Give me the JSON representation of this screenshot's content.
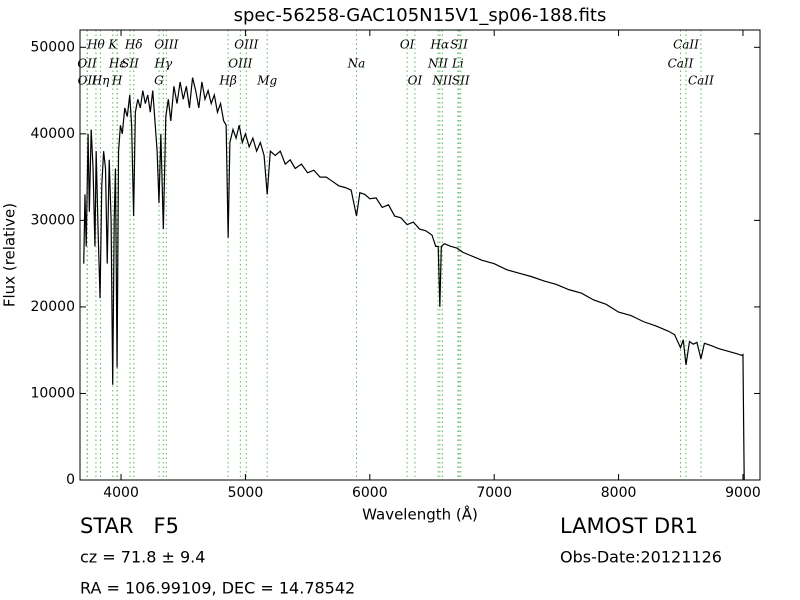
{
  "chart_data": {
    "type": "line",
    "title": "spec-56258-GAC105N15V1_sp06-188.fits",
    "x_label": "Wavelength (Å)",
    "y_label": "Flux (relative)",
    "xlim": [
      3670,
      9137
    ],
    "ylim": [
      0,
      52000
    ],
    "xticks": [
      4000,
      5000,
      6000,
      7000,
      8000,
      9000
    ],
    "yticks": [
      0,
      10000,
      20000,
      30000,
      40000,
      50000
    ],
    "grid": false,
    "line_color": "#5cb85c",
    "series": [
      {
        "name": "Flux",
        "color": "#000000",
        "x": [
          3700,
          3710,
          3720,
          3735,
          3745,
          3760,
          3775,
          3790,
          3800,
          3815,
          3831,
          3845,
          3860,
          3875,
          3889,
          3905,
          3920,
          3933,
          3945,
          3955,
          3968,
          3980,
          3995,
          4010,
          4030,
          4050,
          4070,
          4085,
          4101,
          4115,
          4135,
          4155,
          4175,
          4195,
          4215,
          4235,
          4255,
          4275,
          4290,
          4305,
          4320,
          4340,
          4360,
          4380,
          4400,
          4425,
          4450,
          4475,
          4500,
          4525,
          4550,
          4575,
          4600,
          4625,
          4650,
          4675,
          4700,
          4725,
          4750,
          4775,
          4800,
          4825,
          4845,
          4861,
          4875,
          4900,
          4925,
          4950,
          4975,
          5000,
          5030,
          5060,
          5090,
          5120,
          5150,
          5175,
          5200,
          5240,
          5280,
          5320,
          5360,
          5400,
          5450,
          5500,
          5550,
          5600,
          5650,
          5700,
          5750,
          5800,
          5850,
          5893,
          5920,
          5960,
          6000,
          6050,
          6100,
          6150,
          6200,
          6250,
          6300,
          6350,
          6400,
          6450,
          6500,
          6530,
          6550,
          6563,
          6575,
          6600,
          6650,
          6700,
          6750,
          6800,
          6850,
          6900,
          6950,
          7000,
          7100,
          7200,
          7300,
          7400,
          7500,
          7600,
          7700,
          7800,
          7900,
          8000,
          8100,
          8200,
          8300,
          8400,
          8450,
          8498,
          8520,
          8542,
          8570,
          8600,
          8630,
          8662,
          8690,
          8750,
          8800,
          8850,
          8900,
          8950,
          8990,
          9000,
          9005,
          9010
        ],
        "values": [
          25000,
          33000,
          27000,
          40000,
          31000,
          40500,
          36000,
          27000,
          38000,
          29000,
          21000,
          34000,
          38000,
          36000,
          25000,
          37000,
          30000,
          11000,
          30000,
          36000,
          13000,
          38000,
          41000,
          40000,
          43000,
          42000,
          44500,
          41000,
          30500,
          42500,
          44000,
          43000,
          45000,
          43500,
          44500,
          42500,
          45000,
          41000,
          38000,
          32000,
          40000,
          29000,
          42000,
          44000,
          41500,
          45500,
          43500,
          46000,
          44000,
          45500,
          43000,
          46500,
          45000,
          43000,
          46000,
          44000,
          45000,
          43500,
          44500,
          42500,
          43500,
          41500,
          41000,
          28000,
          39000,
          40500,
          39500,
          41000,
          39000,
          40000,
          38500,
          39500,
          38000,
          39000,
          37500,
          33000,
          38000,
          37500,
          38000,
          36500,
          37000,
          36000,
          36500,
          35500,
          35800,
          35000,
          35000,
          34500,
          34000,
          33800,
          33500,
          30500,
          33200,
          33000,
          32500,
          32600,
          31500,
          31800,
          30500,
          30300,
          29500,
          29800,
          29000,
          28800,
          28300,
          27000,
          27000,
          20000,
          27000,
          27300,
          27000,
          26800,
          26300,
          26000,
          25700,
          25400,
          25200,
          25000,
          24300,
          23900,
          23500,
          23000,
          22600,
          22000,
          21600,
          20800,
          20300,
          19400,
          19000,
          18300,
          17800,
          17200,
          16800,
          15300,
          16200,
          13300,
          16000,
          15700,
          15900,
          14000,
          15800,
          15500,
          15200,
          15000,
          14800,
          14600,
          14400,
          14500,
          7000,
          0
        ]
      }
    ],
    "spectral_lines": [
      {
        "label": "OII",
        "x": 3727
      },
      {
        "label": "OII",
        "x": 3729
      },
      {
        "label": "Hθ",
        "x": 3798
      },
      {
        "label": "Hη",
        "x": 3835
      },
      {
        "label": "K",
        "x": 3934
      },
      {
        "label": "H",
        "x": 3968
      },
      {
        "label": "Hε",
        "x": 3970
      },
      {
        "label": "SII",
        "x": 4072
      },
      {
        "label": "Hδ",
        "x": 4102
      },
      {
        "label": "G",
        "x": 4305
      },
      {
        "label": "Hγ",
        "x": 4340
      },
      {
        "label": "OIII",
        "x": 4364
      },
      {
        "label": "Hβ",
        "x": 4861
      },
      {
        "label": "OIII",
        "x": 4959
      },
      {
        "label": "OIII",
        "x": 5007
      },
      {
        "label": "Mg",
        "x": 5175
      },
      {
        "label": "Na",
        "x": 5893
      },
      {
        "label": "OI",
        "x": 6300
      },
      {
        "label": "OI",
        "x": 6363
      },
      {
        "label": "NII",
        "x": 6548
      },
      {
        "label": "Hα",
        "x": 6563
      },
      {
        "label": "NII",
        "x": 6583
      },
      {
        "label": "Li",
        "x": 6708
      },
      {
        "label": "SII",
        "x": 6717
      },
      {
        "label": "SII",
        "x": 6731
      },
      {
        "label": "CaII",
        "x": 8498
      },
      {
        "label": "CaII",
        "x": 8542
      },
      {
        "label": "CaII",
        "x": 8662
      }
    ],
    "annotations": {
      "object": "STAR   F5",
      "survey": "LAMOST DR1",
      "redshift": "cz = 71.8 ± 9.4",
      "obs_date": "Obs-Date:20121126",
      "coords": "RA = 106.99109, DEC = 14.78542"
    }
  }
}
